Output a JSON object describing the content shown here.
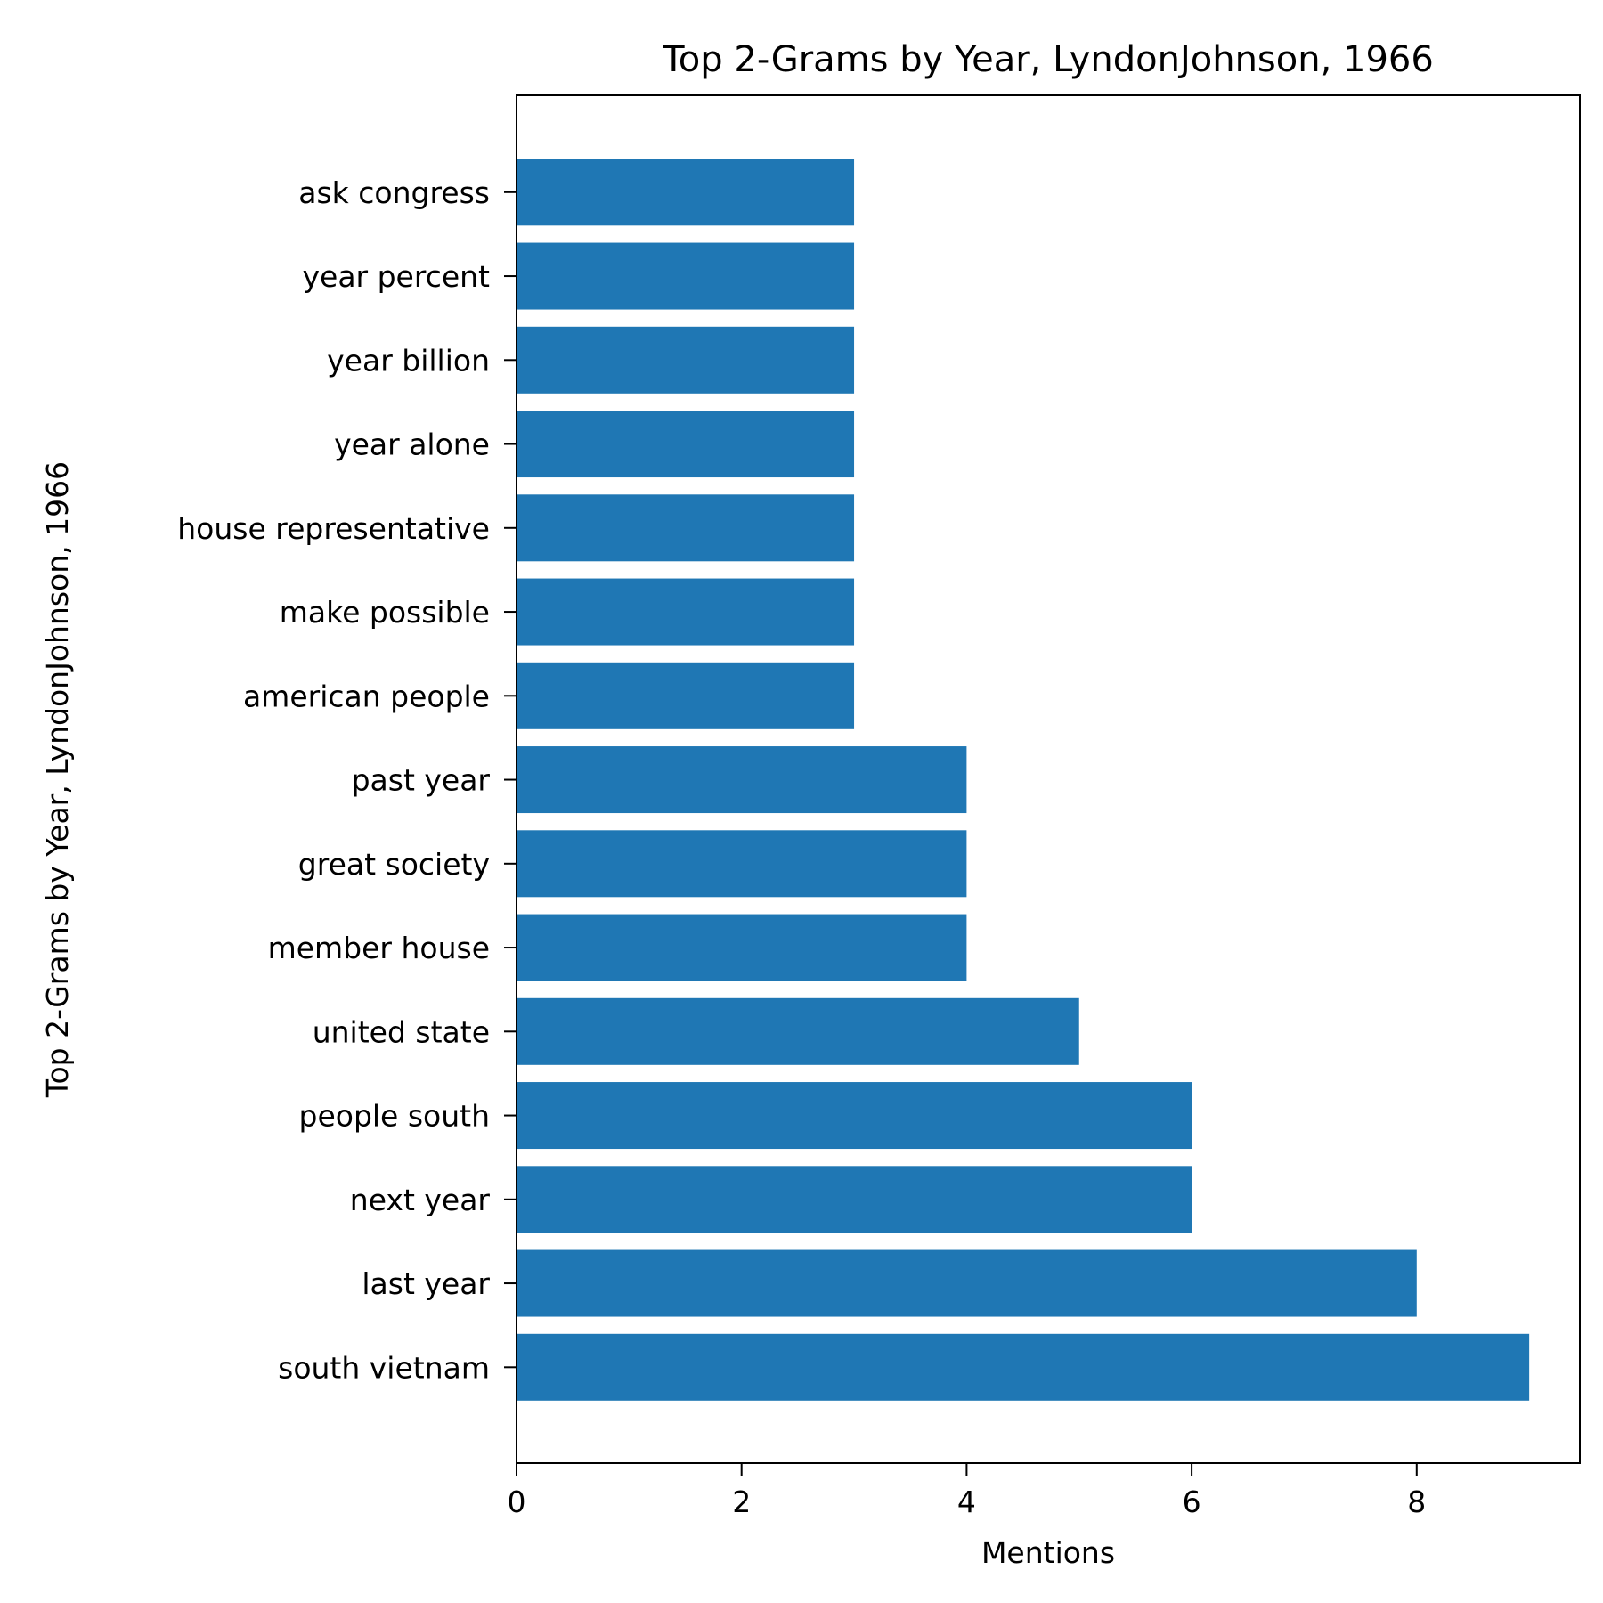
{
  "chart_data": {
    "type": "bar",
    "orientation": "horizontal",
    "title": "Top 2-Grams by Year, LyndonJohnson, 1966",
    "xlabel": "Mentions",
    "ylabel": "Top 2-Grams by Year, LyndonJohnson, 1966",
    "categories": [
      "south vietnam",
      "last year",
      "next year",
      "people south",
      "united state",
      "member house",
      "great society",
      "past year",
      "american people",
      "make possible",
      "house representative",
      "year alone",
      "year billion",
      "year percent",
      "ask congress"
    ],
    "values": [
      9,
      8,
      6,
      6,
      5,
      4,
      4,
      4,
      3,
      3,
      3,
      3,
      3,
      3,
      3
    ],
    "xlim": [
      0,
      9.45
    ],
    "xticks": [
      "0",
      "2",
      "4",
      "6",
      "8"
    ],
    "grid": false,
    "legend": "none",
    "colors": {
      "bar": "#1f77b4"
    }
  }
}
